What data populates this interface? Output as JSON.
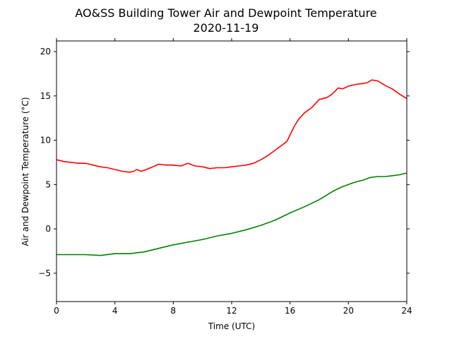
{
  "chart_data": {
    "type": "line",
    "title": "AO&SS Building Tower Air and Dewpoint Temperature",
    "subtitle": "2020-11-19",
    "xlabel": "Time (UTC)",
    "ylabel": "Air and Dewpoint Temperature (°C)",
    "xlim": [
      0,
      24
    ],
    "ylim": [
      -8.2,
      21.2
    ],
    "xticks": [
      "0",
      "4",
      "8",
      "12",
      "16",
      "20",
      "24"
    ],
    "yticks": [
      "−5",
      "0",
      "5",
      "10",
      "15",
      "20"
    ],
    "grid": false,
    "series": [
      {
        "color": "#ff0000",
        "x": [
          0,
          0.5,
          1,
          1.5,
          2,
          2.5,
          3,
          3.5,
          4,
          4.5,
          5,
          5.3,
          5.5,
          5.8,
          6,
          6.3,
          6.6,
          7,
          7.5,
          8,
          8.5,
          9,
          9.5,
          10,
          10.5,
          11,
          11.5,
          12,
          12.5,
          13,
          13.5,
          14,
          14.5,
          15,
          15.5,
          15.8,
          16,
          16.3,
          16.6,
          17,
          17.5,
          18,
          18.5,
          18.8,
          19,
          19.3,
          19.6,
          20,
          20.5,
          21,
          21.3,
          21.6,
          22,
          22.5,
          23,
          23.5,
          24
        ],
        "values": [
          7.8,
          7.6,
          7.5,
          7.4,
          7.4,
          7.2,
          7.0,
          6.9,
          6.7,
          6.5,
          6.4,
          6.5,
          6.7,
          6.5,
          6.6,
          6.8,
          7.0,
          7.3,
          7.2,
          7.2,
          7.1,
          7.4,
          7.1,
          7.0,
          6.8,
          6.9,
          6.9,
          7.0,
          7.1,
          7.2,
          7.4,
          7.8,
          8.3,
          8.9,
          9.5,
          9.9,
          10.6,
          11.6,
          12.4,
          13.1,
          13.7,
          14.6,
          14.8,
          15.1,
          15.4,
          15.9,
          15.8,
          16.1,
          16.3,
          16.4,
          16.5,
          16.8,
          16.7,
          16.2,
          15.8,
          15.2,
          14.7
        ]
      },
      {
        "color": "#008000",
        "x": [
          0,
          1,
          2,
          3,
          4,
          5,
          6,
          7,
          8,
          9,
          10,
          11,
          12,
          13,
          14,
          15,
          16,
          17,
          18,
          18.5,
          19,
          19.5,
          20,
          20.5,
          21,
          21.5,
          22,
          22.5,
          23,
          23.5,
          24
        ],
        "values": [
          -2.9,
          -2.9,
          -2.9,
          -3.0,
          -2.8,
          -2.8,
          -2.6,
          -2.2,
          -1.8,
          -1.5,
          -1.2,
          -0.8,
          -0.5,
          -0.1,
          0.4,
          1.0,
          1.8,
          2.5,
          3.3,
          3.8,
          4.3,
          4.7,
          5.0,
          5.3,
          5.5,
          5.8,
          5.9,
          5.9,
          6.0,
          6.1,
          6.3
        ]
      }
    ]
  }
}
